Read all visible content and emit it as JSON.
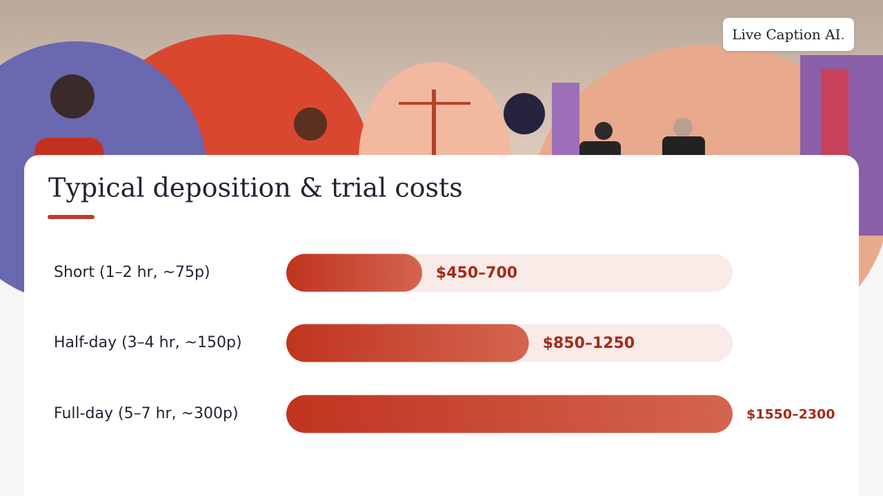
{
  "logo": {
    "text": "Live Caption AI",
    "mark": "."
  },
  "chart_data": {
    "type": "bar",
    "orientation": "horizontal",
    "title": "Typical deposition & trial costs",
    "categories": [
      "Short (1–2 hr, ~75p)",
      "Half-day (3–4 hr, ~150p)",
      "Full-day (5–7 hr, ~300p)"
    ],
    "values": [
      700,
      1250,
      2300
    ],
    "value_labels": [
      "$450–700",
      "$850–1250",
      "$1550–2300"
    ],
    "xlim": [
      0,
      2300
    ],
    "color": "#c0392b",
    "track_color": "#f8ebe8",
    "label_color": "#a52a1a"
  }
}
